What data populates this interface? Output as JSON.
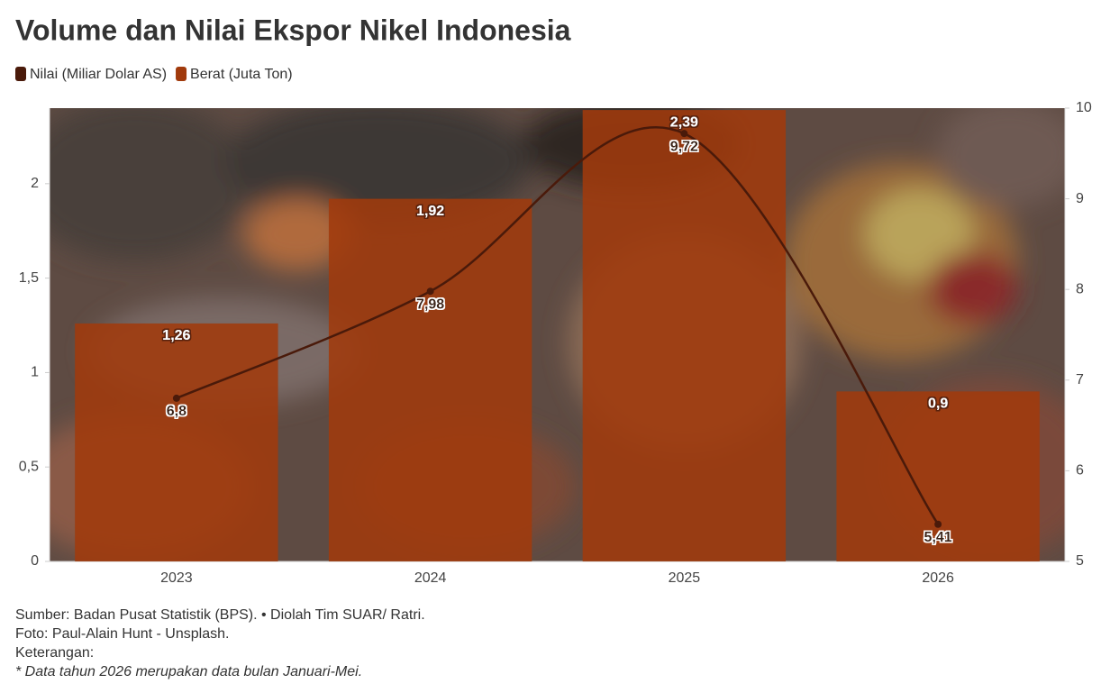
{
  "chart_data": {
    "type": "combo",
    "title": "Volume dan Nilai Ekspor Nikel Indonesia",
    "categories": [
      "2023",
      "2024",
      "2025",
      "2026"
    ],
    "series": [
      {
        "name": "Nilai (Miliar Dolar AS)",
        "type": "line",
        "axis": "y2",
        "color": "#4a1a0a",
        "values": [
          6.8,
          7.98,
          9.72,
          5.41
        ],
        "value_labels": [
          "6,8",
          "7,98",
          "9,72",
          "5,41"
        ]
      },
      {
        "name": "Berat (Juta Ton)",
        "type": "bar",
        "color": "#a13a0c",
        "values": [
          1.26,
          1.92,
          2.39,
          0.9
        ],
        "value_labels": [
          "1,26",
          "1,92",
          "2,39",
          "0,9"
        ]
      }
    ],
    "ylim": [
      0,
      2.4
    ],
    "yticks": [
      0,
      {
        "value": 0.5,
        "label": "0,5"
      },
      1,
      {
        "value": 1.5,
        "label": "1,5"
      },
      2
    ],
    "y2lim": [
      5,
      10
    ],
    "y2ticks": [
      5,
      6,
      7,
      8,
      9,
      10
    ],
    "grid": false,
    "legend": "top-left",
    "notes": [
      "Sumber: Badan Pusat Statistik (BPS). • Diolah Tim SUAR/ Ratri.",
      "Foto: Paul-Alain Hunt - Unsplash.",
      "Keterangan:",
      "* Data tahun 2026 merupakan data bulan Januari-Mei."
    ]
  }
}
